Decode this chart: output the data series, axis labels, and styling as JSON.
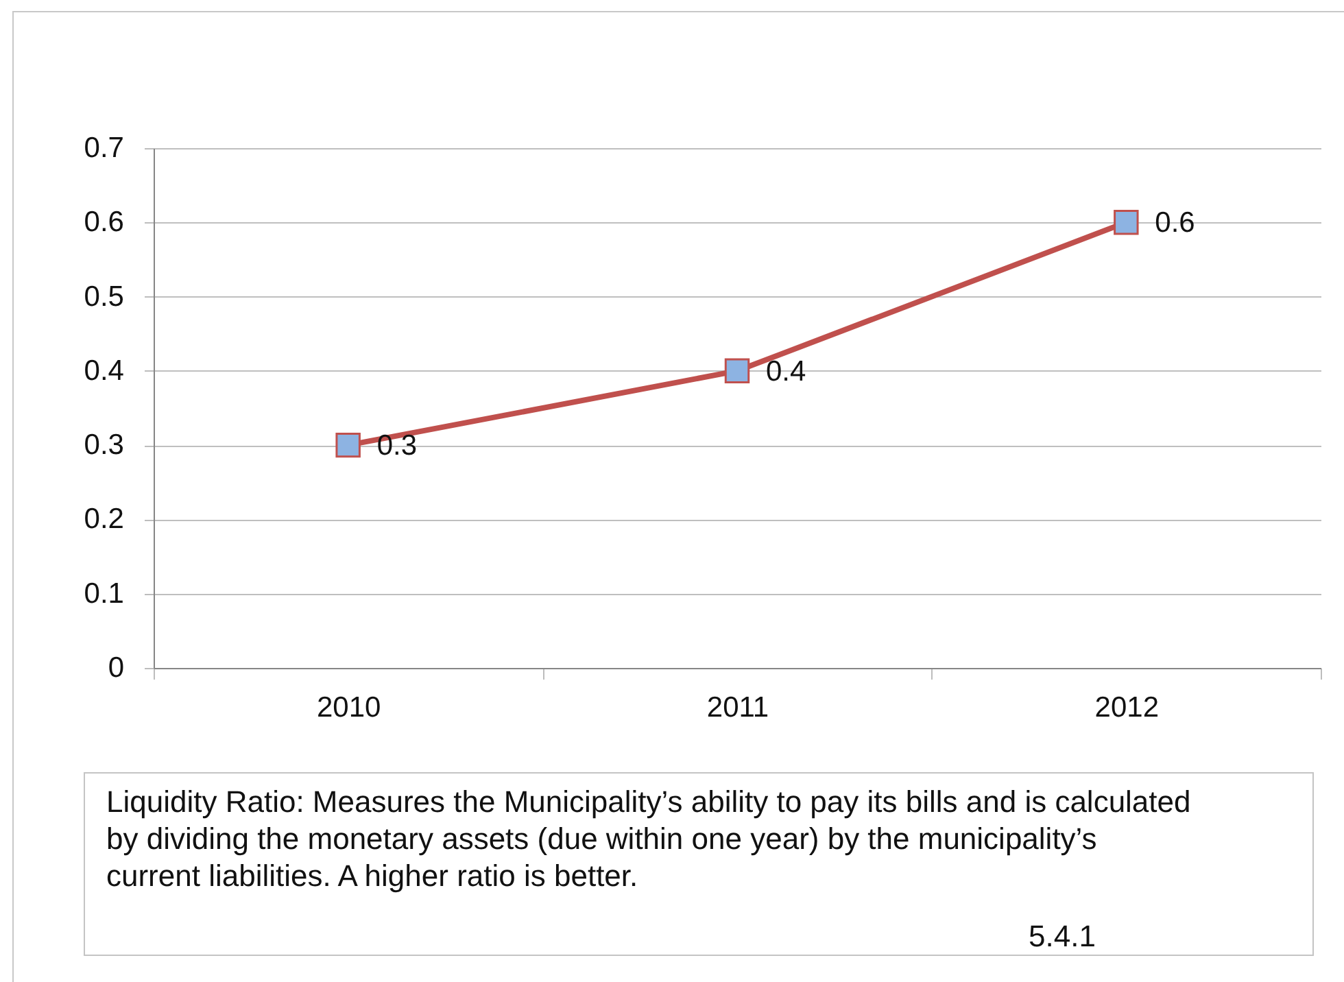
{
  "chart_data": {
    "type": "line",
    "categories": [
      "2010",
      "2011",
      "2012"
    ],
    "series": [
      {
        "color": "#c0504d",
        "values": [
          0.3,
          0.4,
          0.6
        ]
      }
    ],
    "ylim": [
      0,
      0.7
    ],
    "yticks": [
      0,
      0.1,
      0.2,
      0.3,
      0.4,
      0.5,
      0.6,
      0.7
    ],
    "grid": "y",
    "marker": "square",
    "line_style": "solid",
    "data_labels": true,
    "annotations": [
      "Liquidity Ratio: Measures the Municipality’s ability to pay its bills and is calculated by dividing the monetary assets (due within one year) by the municipality’s current liabilities. A higher ratio is better.",
      "5.4.1"
    ]
  }
}
